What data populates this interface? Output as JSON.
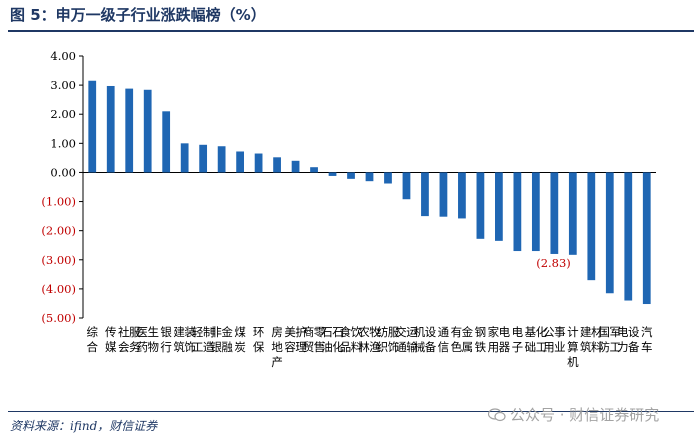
{
  "title": "图 5：申万一级子行业涨跌幅榜（%）",
  "source": "资料来源：ifind，财信证券",
  "watermark": "公众号 · 财信证券研究",
  "colors": {
    "bar": "#1f66b3",
    "negative_text": "#c00000",
    "axis": "#000000",
    "title": "#1f3864"
  },
  "chart_data": {
    "type": "bar",
    "title": "申万一级子行业涨跌幅榜（%）",
    "xlabel": "",
    "ylabel": "",
    "ylim": [
      -5.0,
      4.0
    ],
    "ytick_values": [
      4.0,
      3.0,
      2.0,
      1.0,
      0.0,
      -1.0,
      -2.0,
      -3.0,
      -4.0,
      -5.0
    ],
    "ytick_labels": [
      "4.00",
      "3.00",
      "2.00",
      "1.00",
      "0.00",
      "(1.00)",
      "(2.00)",
      "(3.00)",
      "(4.00)",
      "(5.00)"
    ],
    "categories": [
      "综合",
      "传媒",
      "社会服务",
      "医药生物",
      "银行",
      "建筑装饰",
      "轻工制造",
      "非银金融",
      "煤炭",
      "环保",
      "房地产",
      "美容护理",
      "商贸零售",
      "石油石化",
      "食品饮料",
      "农林牧渔",
      "纺织服饰",
      "交通运输",
      "机械设备",
      "通信",
      "有色金属",
      "钢铁",
      "家用电器",
      "电子",
      "基础化工",
      "公用事业",
      "计算机",
      "建筑材料",
      "国防军工",
      "电力设备",
      "汽车"
    ],
    "values": [
      3.15,
      2.97,
      2.88,
      2.84,
      2.1,
      1.0,
      0.95,
      0.9,
      0.72,
      0.65,
      0.52,
      0.4,
      0.18,
      -0.12,
      -0.22,
      -0.3,
      -0.38,
      -0.92,
      -1.5,
      -1.52,
      -1.58,
      -2.28,
      -2.35,
      -2.7,
      -2.7,
      -2.8,
      -2.83,
      -3.7,
      -4.15,
      -4.4,
      -4.52
    ],
    "annotations": [
      {
        "category": "计算机",
        "text": "(2.83)"
      }
    ],
    "grid": false,
    "legend": "none"
  }
}
